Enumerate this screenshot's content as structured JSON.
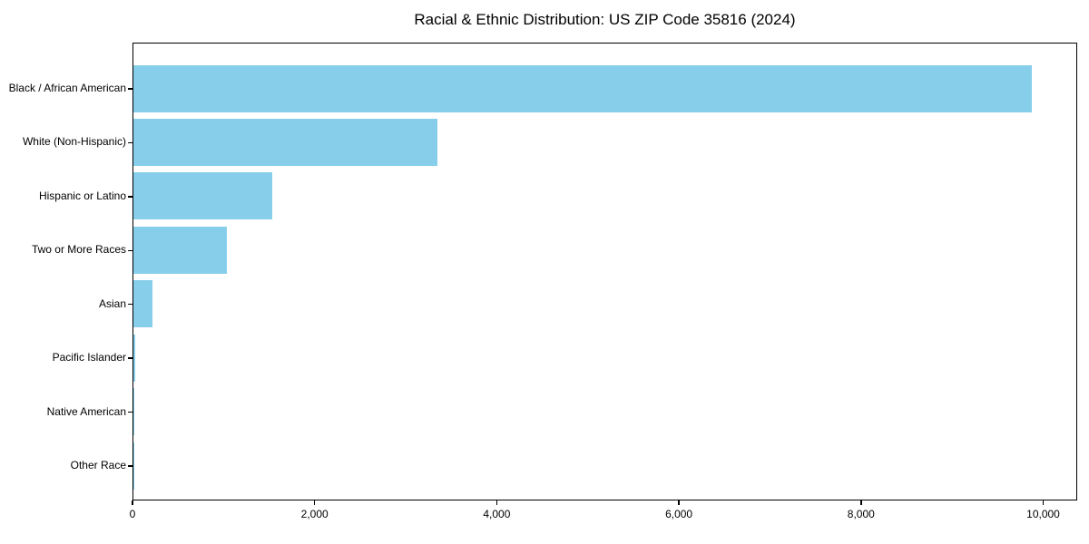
{
  "chart_data": {
    "type": "bar",
    "orientation": "horizontal",
    "title": "Racial & Ethnic Distribution: US ZIP Code 35816 (2024)",
    "xlabel": "",
    "ylabel": "",
    "categories": [
      "Black / African American",
      "White (Non-Hispanic)",
      "Hispanic or Latino",
      "Two or More Races",
      "Asian",
      "Pacific Islander",
      "Native American",
      "Other Race"
    ],
    "values": [
      9870,
      3340,
      1520,
      1030,
      210,
      15,
      8,
      4
    ],
    "xlim": [
      0,
      10370
    ],
    "x_ticks": [
      0,
      2000,
      4000,
      6000,
      8000,
      10000
    ],
    "x_tick_labels": [
      "0",
      "2,000",
      "4,000",
      "6,000",
      "8,000",
      "10,000"
    ],
    "bar_color": "#87CEEB",
    "text_color": "#000000",
    "background_color": "#ffffff",
    "grid": false,
    "legend": null
  }
}
